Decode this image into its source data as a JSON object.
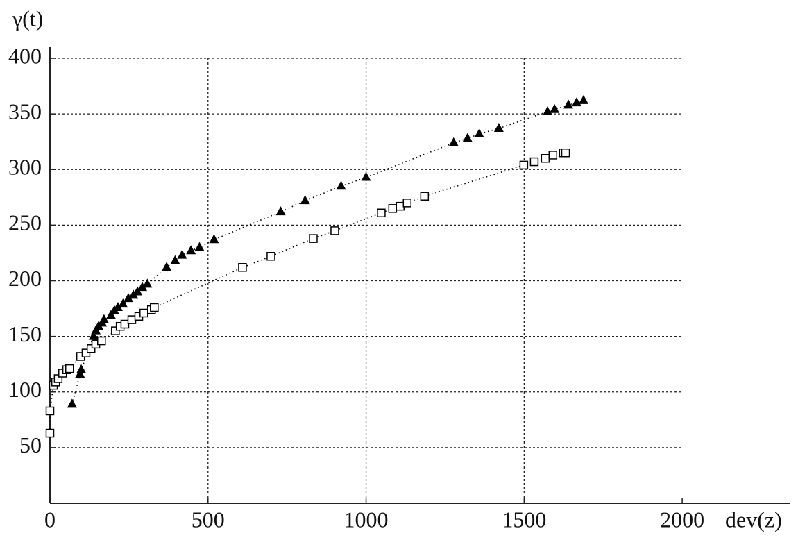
{
  "chart_data": {
    "type": "scatter",
    "xlabel": "dev(z)",
    "ylabel": "γ(t)",
    "xlim": [
      0,
      2340
    ],
    "ylim": [
      0,
      410
    ],
    "xticks": [
      0,
      500,
      1000,
      1500,
      2000
    ],
    "yticks": [
      50,
      100,
      150,
      200,
      250,
      300,
      350,
      400
    ],
    "grid": true,
    "series": [
      {
        "marker": "triangle",
        "color": "#000000",
        "x": [
          70,
          95,
          99,
          138,
          145,
          154,
          165,
          171,
          193,
          204,
          215,
          231,
          248,
          264,
          277,
          292,
          308,
          369,
          396,
          418,
          446,
          473,
          519,
          730,
          807,
          921,
          1000,
          1277,
          1321,
          1358,
          1420,
          1574,
          1596,
          1640,
          1666,
          1688
        ],
        "y": [
          89,
          116,
          120,
          150,
          155,
          159,
          162,
          165,
          169,
          173,
          176,
          179,
          184,
          187,
          190,
          194,
          197,
          212,
          218,
          223,
          227,
          230,
          237,
          262,
          272,
          285,
          293,
          324,
          328,
          332,
          337,
          352,
          354,
          358,
          360,
          362
        ]
      },
      {
        "marker": "square",
        "color": "#000000",
        "x": [
          0,
          0,
          11,
          18,
          26,
          40,
          53,
          62,
          97,
          114,
          130,
          145,
          163,
          207,
          222,
          237,
          259,
          281,
          297,
          321,
          330,
          609,
          699,
          833,
          901,
          1048,
          1084,
          1108,
          1130,
          1185,
          1499,
          1532,
          1567,
          1591,
          1624,
          1631
        ],
        "y": [
          63,
          83,
          106,
          109,
          112,
          117,
          120,
          121,
          132,
          135,
          139,
          143,
          146,
          155,
          159,
          161,
          165,
          168,
          171,
          174,
          176,
          212,
          222,
          238,
          245,
          261,
          265,
          267,
          270,
          276,
          304,
          307,
          310,
          313,
          315,
          315
        ]
      }
    ]
  }
}
